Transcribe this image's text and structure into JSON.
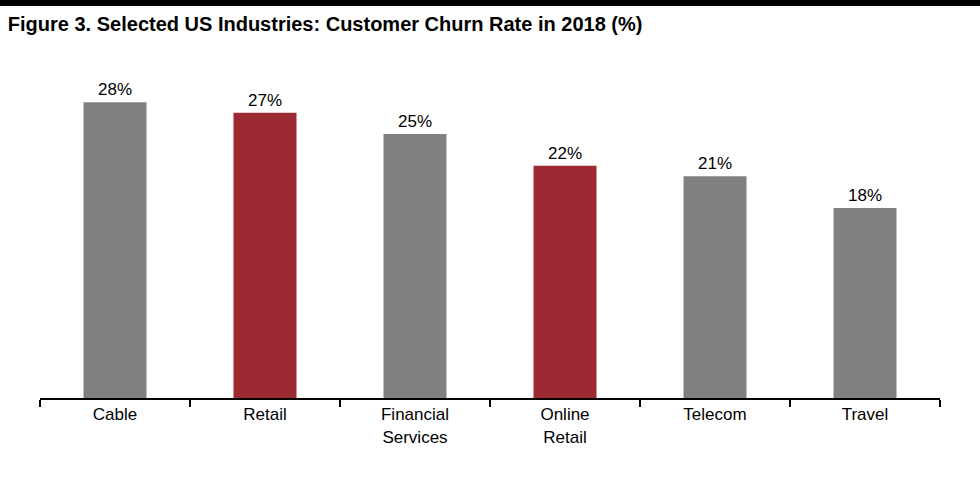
{
  "chart_data": {
    "type": "bar",
    "title": "Figure 3. Selected US Industries: Customer Churn Rate in 2018 (%)",
    "categories": [
      "Cable",
      "Retail",
      "Financial Services",
      "Online Retail",
      "Telecom",
      "Travel"
    ],
    "values": [
      28,
      27,
      25,
      22,
      21,
      18
    ],
    "value_labels": [
      "28%",
      "27%",
      "25%",
      "22%",
      "21%",
      "18%"
    ],
    "colors": [
      "#808080",
      "#9b2a33",
      "#808080",
      "#9b2a33",
      "#808080",
      "#808080"
    ],
    "ylim": [
      0,
      32
    ],
    "grid": false,
    "data_labels": true,
    "tick_labels": "x"
  }
}
